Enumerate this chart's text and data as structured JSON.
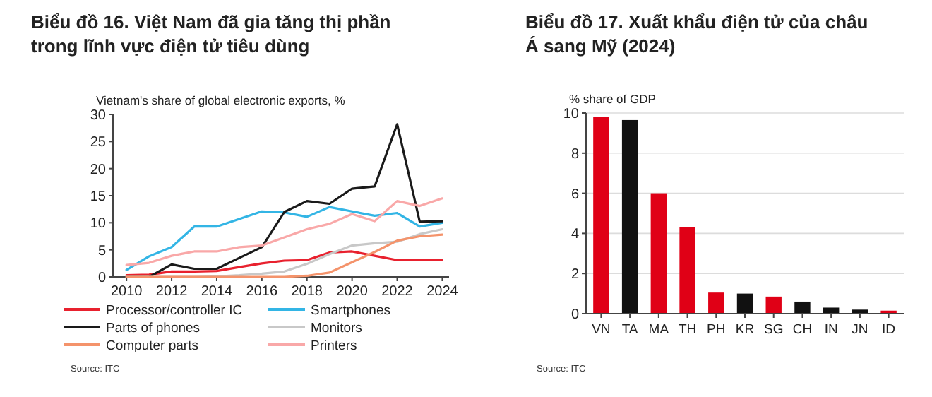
{
  "chart_data": [
    {
      "type": "line",
      "title": "Biểu đồ 16. Việt Nam đã gia tăng thị phần trong lĩnh vực điện tử tiêu dùng",
      "subtitle": "Vietnam's share of global electronic exports, %",
      "x": [
        2010,
        2011,
        2012,
        2013,
        2014,
        2015,
        2016,
        2017,
        2018,
        2019,
        2020,
        2021,
        2022,
        2023,
        2024
      ],
      "xlim": [
        2009.4,
        2024.3
      ],
      "xticks": [
        2010,
        2012,
        2014,
        2016,
        2018,
        2020,
        2022,
        2024
      ],
      "ylim": [
        0,
        30
      ],
      "yticks": [
        0,
        5,
        10,
        15,
        20,
        25,
        30
      ],
      "grid": false,
      "legend": "bottom",
      "marker": "none",
      "annotations": [
        "Source: ITC"
      ],
      "series": [
        {
          "name": "Processor/controller IC",
          "color": "#e8212e",
          "values": [
            0.3,
            0.4,
            1,
            1,
            1.1,
            1.8,
            2.5,
            3,
            3.1,
            4.5,
            4.7,
            3.9,
            3.1,
            3.1,
            3.1
          ]
        },
        {
          "name": "Smartphones",
          "color": "#33b5e5",
          "values": [
            1.3,
            3.8,
            5.5,
            9.3,
            9.3,
            10.7,
            12.1,
            11.9,
            11.1,
            12.9,
            12.1,
            11.3,
            11.8,
            9.3,
            10
          ]
        },
        {
          "name": "Parts of phones",
          "color": "#1a1a1a",
          "values": [
            0,
            0,
            2.3,
            1.5,
            1.5,
            3.5,
            5.5,
            12,
            14,
            13.5,
            16.3,
            16.7,
            28.2,
            10.2,
            10.3
          ]
        },
        {
          "name": "Monitors",
          "color": "#c8c8c8",
          "values": [
            0,
            0,
            0,
            0,
            0.1,
            0.3,
            0.6,
            1,
            2.4,
            4.2,
            5.8,
            6.2,
            6.5,
            7.9,
            8.8
          ]
        },
        {
          "name": "Computer parts",
          "color": "#f4936b",
          "values": [
            0,
            0,
            0,
            0,
            0,
            0,
            0,
            0,
            0.2,
            0.8,
            2.7,
            4.6,
            6.7,
            7.5,
            7.8
          ]
        },
        {
          "name": "Printers",
          "color": "#f9a8a8",
          "values": [
            2.2,
            2.6,
            3.9,
            4.7,
            4.7,
            5.5,
            5.8,
            7.3,
            8.8,
            9.8,
            11.6,
            10.3,
            14,
            13.1,
            14.5
          ]
        }
      ]
    },
    {
      "type": "bar",
      "title": "Biểu đồ 17. Xuất khẩu điện tử của châu Á sang Mỹ (2024)",
      "ylabel": "% share of GDP",
      "categories": [
        "VN",
        "TA",
        "MA",
        "TH",
        "PH",
        "KR",
        "SG",
        "CH",
        "IN",
        "JN",
        "ID"
      ],
      "values": [
        9.8,
        9.65,
        6,
        4.3,
        1.05,
        1,
        0.85,
        0.6,
        0.3,
        0.2,
        0.15
      ],
      "colors": [
        "#e00016",
        "#111111",
        "#e00016",
        "#e00016",
        "#e00016",
        "#111111",
        "#e00016",
        "#111111",
        "#111111",
        "#111111",
        "#e00016"
      ],
      "ylim": [
        0,
        10
      ],
      "yticks": [
        0,
        2,
        4,
        6,
        8,
        10
      ],
      "grid": "y",
      "annotations": [
        "Source: ITC"
      ]
    }
  ]
}
